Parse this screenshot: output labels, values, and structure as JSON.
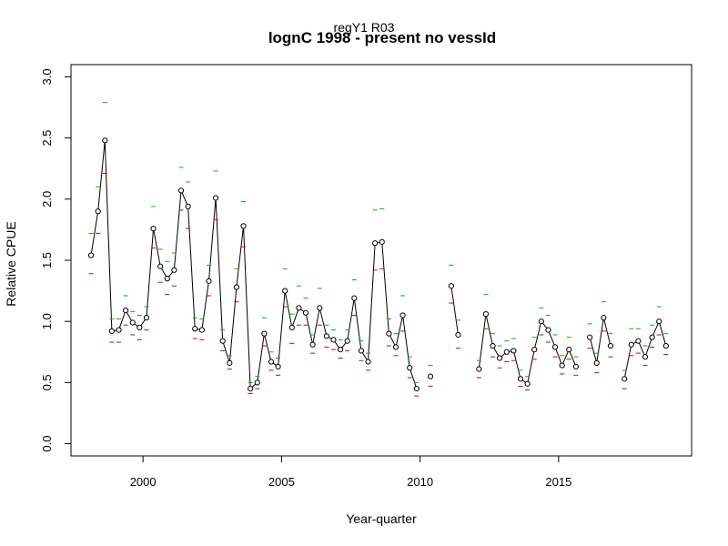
{
  "chart_data": {
    "type": "line",
    "subtitle": "regY1 R03",
    "title": "lognC 1998 - present no vessId",
    "xlabel": "Year-quarter",
    "ylabel": "Relative CPUE",
    "xlim": [
      1997.4,
      2019.8
    ],
    "ylim": [
      -0.1,
      3.1
    ],
    "xticks": [
      2000,
      2005,
      2010,
      2015
    ],
    "yticks": [
      0.0,
      0.5,
      1.0,
      1.5,
      2.0,
      2.5,
      3.0
    ],
    "xtick_labels": [
      "2000",
      "2005",
      "2010",
      "2015"
    ],
    "ytick_labels": [
      "0.0",
      "0.5",
      "1.0",
      "1.5",
      "2.0",
      "2.5",
      "3.0"
    ],
    "colors": {
      "line": "#000000",
      "upper": "#00bb00",
      "lower": "#dd0000"
    },
    "series": [
      {
        "x": [
          1998.125,
          1998.375,
          1998.625,
          1998.875,
          1999.125,
          1999.375,
          1999.625,
          1999.875,
          2000.125,
          2000.375,
          2000.625,
          2000.875,
          2001.125,
          2001.375,
          2001.625,
          2001.875,
          2002.125,
          2002.375,
          2002.625,
          2002.875,
          2003.125,
          2003.375,
          2003.625,
          2003.875,
          2004.125,
          2004.375,
          2004.625,
          2004.875,
          2005.125,
          2005.375,
          2005.625,
          2005.875,
          2006.125,
          2006.375,
          2006.625,
          2006.875,
          2007.125,
          2007.375,
          2007.625,
          2007.875,
          2008.125,
          2008.375,
          2008.625,
          2008.875,
          2009.125,
          2009.375,
          2009.625,
          2009.875
        ],
        "values": [
          1.54,
          1.9,
          2.48,
          0.92,
          0.93,
          1.09,
          0.99,
          0.95,
          1.03,
          1.76,
          1.45,
          1.35,
          1.42,
          2.07,
          1.94,
          0.94,
          0.93,
          1.33,
          2.01,
          0.84,
          0.66,
          1.28,
          1.78,
          0.45,
          0.5,
          0.9,
          0.67,
          0.63,
          1.25,
          0.95,
          1.11,
          1.07,
          0.81,
          1.11,
          0.88,
          0.85,
          0.77,
          0.84,
          1.19,
          0.76,
          0.67,
          1.64,
          1.65,
          0.9,
          0.79,
          1.05,
          0.62,
          0.45
        ],
        "upper": [
          1.72,
          2.1,
          2.79,
          1.02,
          1.02,
          1.21,
          1.08,
          1.05,
          1.12,
          1.94,
          1.59,
          1.49,
          1.56,
          2.26,
          2.14,
          1.03,
          1.02,
          1.46,
          2.23,
          0.93,
          0.72,
          1.43,
          1.98,
          0.5,
          0.55,
          1.03,
          0.75,
          0.7,
          1.43,
          1.06,
          1.29,
          1.19,
          0.89,
          1.27,
          0.97,
          0.93,
          0.85,
          0.93,
          1.34,
          0.84,
          0.74,
          1.91,
          1.92,
          1.02,
          0.9,
          1.21,
          0.71,
          0.5
        ],
        "lower": [
          1.39,
          1.72,
          2.21,
          0.83,
          0.83,
          0.97,
          0.89,
          0.85,
          0.93,
          1.6,
          1.32,
          1.22,
          1.29,
          1.91,
          1.76,
          0.86,
          0.85,
          1.21,
          1.83,
          0.76,
          0.61,
          1.16,
          1.61,
          0.41,
          0.45,
          0.8,
          0.6,
          0.56,
          1.12,
          0.82,
          0.97,
          0.97,
          0.74,
          0.97,
          0.79,
          0.77,
          0.7,
          0.76,
          1.05,
          0.68,
          0.6,
          1.42,
          1.43,
          0.8,
          0.72,
          0.92,
          0.54,
          0.39
        ]
      },
      {
        "x": [
          2010.375
        ],
        "values": [
          0.55
        ],
        "upper": [
          0.64
        ],
        "lower": [
          0.47
        ]
      },
      {
        "x": [
          2011.125,
          2011.375
        ],
        "values": [
          1.29,
          0.89
        ],
        "upper": [
          1.46,
          1.01
        ],
        "lower": [
          1.15,
          0.78
        ]
      },
      {
        "x": [
          2012.125,
          2012.375,
          2012.625,
          2012.875,
          2013.125,
          2013.375,
          2013.625,
          2013.875,
          2014.125,
          2014.375,
          2014.625,
          2014.875,
          2015.125,
          2015.375,
          2015.625
        ],
        "values": [
          0.61,
          1.06,
          0.8,
          0.7,
          0.75,
          0.76,
          0.53,
          0.49,
          0.77,
          1.0,
          0.93,
          0.79,
          0.64,
          0.77,
          0.63
        ],
        "upper": [
          0.68,
          1.22,
          0.9,
          0.8,
          0.84,
          0.86,
          0.6,
          0.55,
          0.87,
          1.11,
          1.05,
          0.89,
          0.72,
          0.87,
          0.71
        ],
        "lower": [
          0.54,
          0.94,
          0.71,
          0.62,
          0.67,
          0.68,
          0.47,
          0.44,
          0.69,
          0.89,
          0.83,
          0.71,
          0.57,
          0.69,
          0.56
        ]
      },
      {
        "x": [
          2016.125,
          2016.375,
          2016.625,
          2016.875
        ],
        "values": [
          0.87,
          0.66,
          1.03,
          0.8
        ],
        "upper": [
          0.98,
          0.74,
          1.16,
          0.9
        ],
        "lower": [
          0.78,
          0.58,
          0.92,
          0.71
        ]
      },
      {
        "x": [
          2017.375,
          2017.625,
          2017.875,
          2018.125,
          2018.375,
          2018.625,
          2018.875
        ],
        "values": [
          0.53,
          0.81,
          0.84,
          0.71,
          0.87,
          1.0,
          0.8
        ],
        "upper": [
          0.6,
          0.94,
          0.94,
          0.8,
          0.97,
          1.12,
          0.9
        ],
        "lower": [
          0.45,
          0.72,
          0.74,
          0.64,
          0.79,
          0.89,
          0.73
        ]
      }
    ]
  }
}
